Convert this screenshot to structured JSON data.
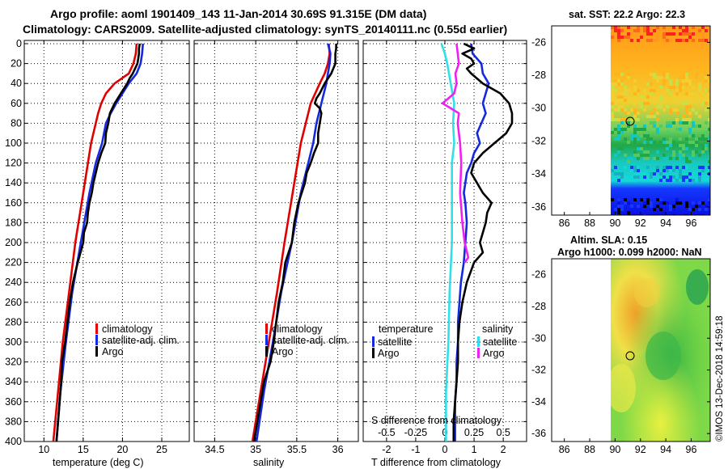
{
  "header": {
    "line1": "Argo profile: aoml 1901409_143 11-Jan-2014 30.69S 91.315E (DM data)",
    "line2": "Climatology: CARS2009. Satellite-adjusted climatology: synTS_20140111.nc (0.55d earlier)"
  },
  "colors": {
    "climatology": "#e00000",
    "satellite_adj": "#1428e0",
    "argo": "#000000",
    "sal_satellite": "#30e0e8",
    "sal_argo": "#f020f0"
  },
  "chart_data": [
    {
      "type": "line",
      "name": "temperature",
      "xlabel": "temperature (deg C)",
      "ylabel": "",
      "xlim": [
        7.5,
        28.5
      ],
      "ylim": [
        400,
        0
      ],
      "xticks": [
        "10",
        "15",
        "20",
        "25"
      ],
      "yticks": [
        "0",
        "20",
        "40",
        "60",
        "80",
        "100",
        "120",
        "140",
        "160",
        "180",
        "200",
        "220",
        "240",
        "260",
        "280",
        "300",
        "320",
        "340",
        "360",
        "380",
        "400"
      ],
      "legend": [
        "climatology",
        "satellite-adj. clim.",
        "Argo"
      ],
      "series": [
        {
          "name": "climatology",
          "color": "#e00000",
          "depth": [
            0,
            10,
            20,
            30,
            40,
            50,
            60,
            70,
            80,
            100,
            120,
            150,
            200,
            250,
            300,
            350,
            400
          ],
          "values": [
            21.8,
            21.7,
            21.4,
            20.8,
            19.0,
            17.9,
            17.3,
            16.9,
            16.6,
            16.0,
            15.6,
            15.0,
            14.0,
            13.2,
            12.4,
            11.8,
            11.2
          ]
        },
        {
          "name": "satellite-adj. clim.",
          "color": "#1428e0",
          "depth": [
            0,
            10,
            20,
            30,
            40,
            50,
            60,
            70,
            80,
            100,
            120,
            150,
            200,
            250,
            300,
            350,
            400
          ],
          "values": [
            22.6,
            22.5,
            22.3,
            21.8,
            20.8,
            20.0,
            19.2,
            18.5,
            17.9,
            17.4,
            16.6,
            15.8,
            14.7,
            13.6,
            12.8,
            12.1,
            11.6
          ]
        },
        {
          "name": "Argo",
          "color": "#000000",
          "depth": [
            0,
            5,
            10,
            15,
            20,
            25,
            30,
            35,
            40,
            45,
            50,
            55,
            60,
            70,
            80,
            90,
            100,
            110,
            120,
            130,
            140,
            150,
            160,
            170,
            180,
            190,
            200,
            220,
            240,
            260,
            280,
            300,
            320,
            340,
            360,
            380,
            400
          ],
          "values": [
            22.2,
            22.1,
            22.1,
            22.0,
            21.9,
            21.6,
            21.3,
            20.9,
            20.6,
            20.2,
            19.8,
            19.4,
            19.0,
            18.4,
            18.2,
            17.9,
            17.8,
            17.3,
            16.9,
            16.6,
            16.3,
            16.1,
            15.8,
            15.6,
            15.5,
            15.1,
            15.0,
            14.3,
            13.7,
            13.3,
            13.0,
            12.7,
            12.3,
            12.2,
            12.0,
            11.8,
            11.6
          ]
        }
      ]
    },
    {
      "type": "line",
      "name": "salinity",
      "xlabel": "salinity",
      "ylabel": "",
      "xlim": [
        34.25,
        36.25
      ],
      "ylim": [
        400,
        0
      ],
      "xticks": [
        "34.5",
        "35",
        "35.5",
        "36"
      ],
      "yticks": [],
      "legend": [
        "climatology",
        "satellite-adj. clim.",
        "Argo"
      ],
      "series": [
        {
          "name": "climatology",
          "color": "#e00000",
          "depth": [
            0,
            10,
            20,
            30,
            40,
            60,
            80,
            100,
            150,
            200,
            250,
            300,
            350,
            400
          ],
          "values": [
            35.89,
            35.9,
            35.88,
            35.84,
            35.78,
            35.67,
            35.61,
            35.55,
            35.45,
            35.35,
            35.26,
            35.16,
            35.06,
            34.96
          ]
        },
        {
          "name": "satellite-adj. clim.",
          "color": "#1428e0",
          "depth": [
            0,
            10,
            20,
            30,
            40,
            60,
            80,
            100,
            150,
            200,
            250,
            300,
            350,
            400
          ],
          "values": [
            35.88,
            35.91,
            35.9,
            35.88,
            35.86,
            35.8,
            35.74,
            35.7,
            35.55,
            35.44,
            35.31,
            35.21,
            35.1,
            35.01
          ]
        },
        {
          "name": "Argo",
          "color": "#000000",
          "depth": [
            0,
            5,
            10,
            20,
            30,
            40,
            50,
            55,
            60,
            65,
            70,
            80,
            90,
            100,
            110,
            120,
            130,
            140,
            150,
            160,
            180,
            200,
            220,
            240,
            260,
            280,
            300,
            320,
            340,
            360,
            380,
            400
          ],
          "values": [
            35.98,
            35.98,
            35.97,
            35.97,
            35.92,
            35.84,
            35.78,
            35.74,
            35.72,
            35.78,
            35.8,
            35.78,
            35.76,
            35.76,
            35.71,
            35.67,
            35.62,
            35.6,
            35.56,
            35.52,
            35.47,
            35.44,
            35.36,
            35.33,
            35.28,
            35.25,
            35.22,
            35.18,
            35.1,
            35.06,
            35.02,
            34.98
          ]
        }
      ]
    },
    {
      "type": "line",
      "name": "difference",
      "xlabel": "T difference from climatology",
      "xlabel_top": "S difference from climatology",
      "xlim": [
        -2.8,
        2.8
      ],
      "ylim": [
        400,
        0
      ],
      "xticks": [
        "-2",
        "-1",
        "0",
        "1",
        "2"
      ],
      "xticks_top": [
        "-0.5",
        "-0.25",
        "0",
        "0.25",
        "0.5"
      ],
      "legend_temperature_title": "temperature",
      "legend_salinity_title": "salinity",
      "legend_temperature": [
        "satellite",
        "Argo"
      ],
      "legend_salinity": [
        "satellite",
        "Argo"
      ],
      "series": [
        {
          "name": "temperature satellite",
          "color": "#1428e0",
          "depth": [
            0,
            10,
            20,
            30,
            40,
            50,
            60,
            70,
            80,
            90,
            100,
            110,
            120,
            130,
            140,
            150,
            160,
            180,
            200,
            220,
            240,
            260,
            280,
            300,
            320,
            340,
            360,
            380,
            400
          ],
          "values": [
            0.9,
            0.95,
            1.25,
            1.3,
            1.5,
            1.4,
            1.3,
            1.4,
            1.25,
            1.1,
            1.2,
            1.0,
            0.9,
            0.75,
            0.7,
            0.65,
            0.7,
            0.75,
            0.7,
            0.65,
            0.55,
            0.5,
            0.45,
            0.45,
            0.4,
            0.4,
            0.35,
            0.35,
            0.35
          ]
        },
        {
          "name": "temperature Argo",
          "color": "#000000",
          "depth": [
            0,
            5,
            10,
            15,
            20,
            25,
            30,
            40,
            50,
            60,
            70,
            80,
            90,
            100,
            110,
            120,
            130,
            140,
            150,
            160,
            170,
            180,
            190,
            200,
            210,
            220,
            240,
            260,
            280,
            300,
            320,
            340,
            360,
            380,
            400
          ],
          "values": [
            0.65,
            1.0,
            0.6,
            0.9,
            1.0,
            0.75,
            0.9,
            1.3,
            1.9,
            2.2,
            2.3,
            2.3,
            2.1,
            1.7,
            1.3,
            1.0,
            0.9,
            1.1,
            1.3,
            1.6,
            1.45,
            1.4,
            1.3,
            1.2,
            1.3,
            1.0,
            0.75,
            0.6,
            0.5,
            0.45,
            0.45,
            0.4,
            0.35,
            0.3,
            0.3
          ]
        },
        {
          "name": "salinity satellite",
          "color": "#30e0e8",
          "depth": [
            0,
            10,
            20,
            40,
            60,
            80,
            100,
            120,
            150,
            200,
            250,
            300,
            350,
            400
          ],
          "values": [
            -0.03,
            0.0,
            0.02,
            0.05,
            0.08,
            0.07,
            0.08,
            0.06,
            0.06,
            0.06,
            0.04,
            0.03,
            0.01,
            0.01
          ]
        },
        {
          "name": "salinity Argo",
          "color": "#f020f0",
          "depth": [
            0,
            10,
            20,
            30,
            40,
            50,
            60,
            65,
            70,
            80,
            90,
            100,
            120,
            150,
            180,
            200,
            215,
            220
          ],
          "values": [
            0.1,
            0.11,
            0.12,
            0.09,
            0.1,
            0.08,
            -0.02,
            0.05,
            0.12,
            0.11,
            0.12,
            0.13,
            0.14,
            0.13,
            0.15,
            0.17,
            0.2,
            0.17
          ]
        }
      ]
    },
    {
      "type": "heatmap",
      "name": "satellite SST map",
      "title": "sat. SST: 22.2 Argo: 22.3",
      "xlim": [
        85,
        97.5
      ],
      "ylim": [
        -36.5,
        -25
      ],
      "xticks": [
        "86",
        "88",
        "90",
        "92",
        "94",
        "96"
      ],
      "yticks": [
        "-26",
        "-28",
        "-30",
        "-32",
        "-34",
        "-36"
      ],
      "marker": {
        "lon": 91.3,
        "lat": -30.7
      }
    },
    {
      "type": "heatmap",
      "name": "altimetry SLA map",
      "title": "Altim. SLA: 0.15",
      "subtitle": "Argo h1000: 0.099 h2000: NaN",
      "xlim": [
        85,
        97.5
      ],
      "ylim": [
        -36.5,
        -25
      ],
      "xticks": [
        "86",
        "88",
        "90",
        "92",
        "94",
        "96"
      ],
      "yticks": [
        "-26",
        "-28",
        "-30",
        "-32",
        "-34",
        "-36"
      ],
      "marker": {
        "lon": 91.3,
        "lat": -30.7
      }
    }
  ],
  "credit": "©IMOS 13-Dec-2018 14:59:18"
}
